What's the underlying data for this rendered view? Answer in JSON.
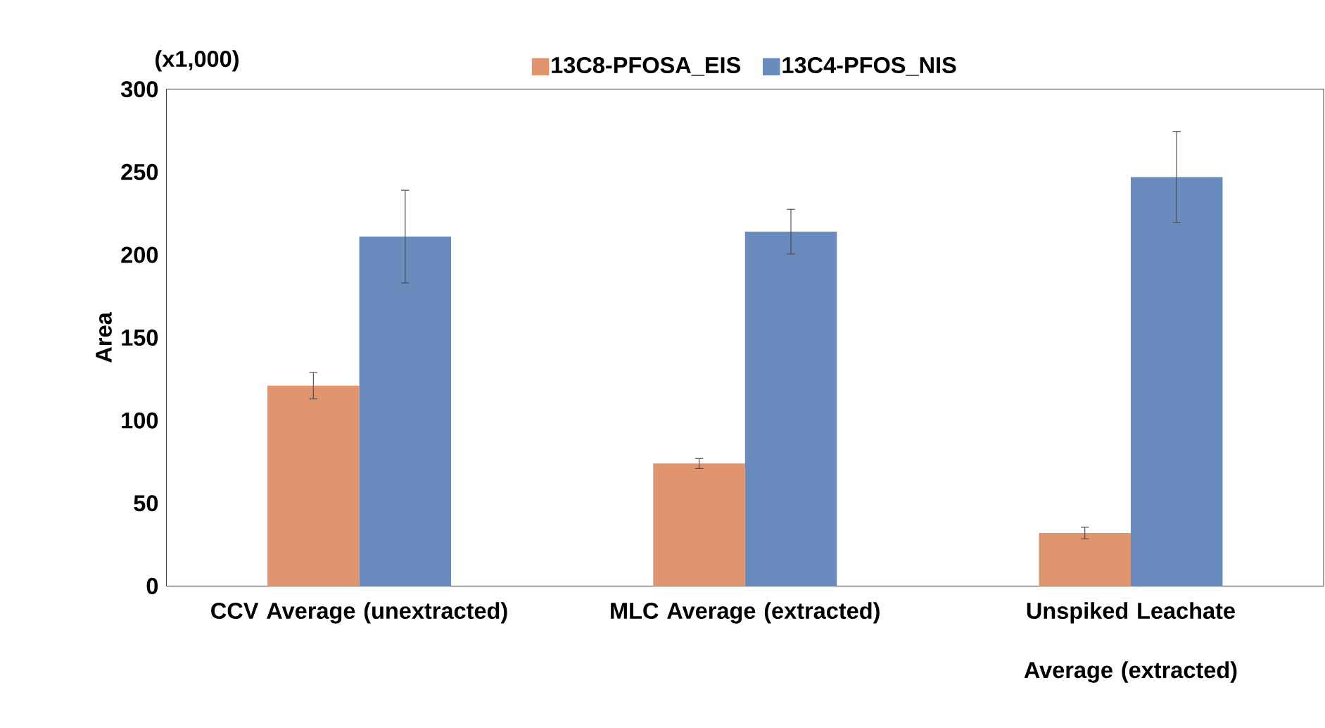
{
  "chart_data": {
    "type": "bar",
    "ylabel": "Area",
    "annotations": [
      "(x1,000)"
    ],
    "categories": [
      "CCV Average (unextracted)",
      "MLC Average (extracted)",
      "Unspiked Leachate Average (extracted)"
    ],
    "series": [
      {
        "name": "13C8-PFOSA_EIS",
        "color": "#e0956f",
        "values": [
          121,
          74,
          32
        ],
        "errors": [
          8,
          3,
          3.5
        ]
      },
      {
        "name": "13C4-PFOS_NIS",
        "color": "#6a8bbd",
        "values": [
          211,
          214,
          247
        ],
        "errors": [
          28,
          13.5,
          27.5
        ]
      }
    ],
    "ylim": [
      0,
      300
    ],
    "yticks": [
      0,
      50,
      100,
      150,
      200,
      250,
      300
    ],
    "grid": false,
    "legend": "top"
  }
}
